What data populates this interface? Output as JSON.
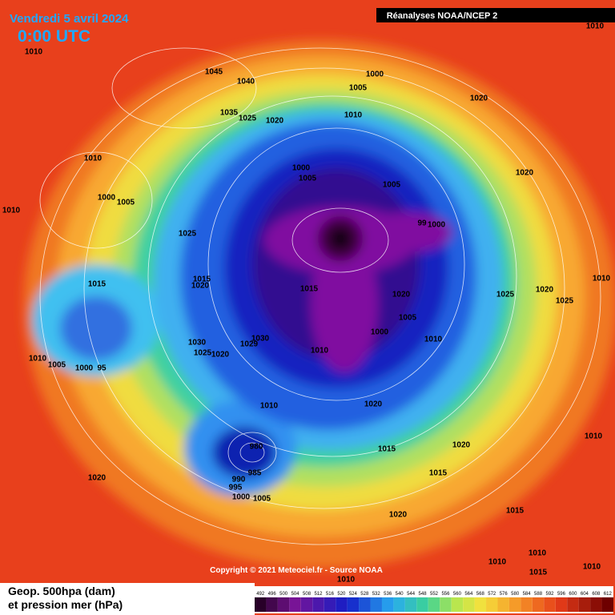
{
  "header": {
    "date": "Vendredi 5 avril 2024",
    "time": "0:00 UTC",
    "source_box": "Réanalyses NOAA/NCEP 2"
  },
  "copyright": "Copyright © 2021 Meteociel.fr - Source NOAA",
  "legend": {
    "title_line1": "Geop. 500hpa (dam)",
    "title_line2": "et pression mer (hPa)",
    "colorbar_labels": [
      492,
      496,
      500,
      504,
      508,
      512,
      516,
      520,
      524,
      528,
      532,
      536,
      540,
      544,
      548,
      552,
      556,
      560,
      564,
      568,
      572,
      576,
      580,
      584,
      588,
      592,
      596,
      600,
      604,
      608,
      612
    ]
  },
  "isobar_labels": [
    "1010",
    "1045",
    "1040",
    "1000",
    "1005",
    "1020",
    "1010",
    "1035",
    "1025",
    "1020",
    "1010",
    "1010",
    "1000",
    "1005",
    "1005",
    "1020",
    "1010",
    "1000",
    "1005",
    "1025",
    "99",
    "1000",
    "1015",
    "1020",
    "1015",
    "1015",
    "1020",
    "1025",
    "1020",
    "1025",
    "1010",
    "1005",
    "1000",
    "1010",
    "1030",
    "1029",
    "1030",
    "1025",
    "1020",
    "1010",
    "1010",
    "1005",
    "1000",
    "95",
    "1010",
    "1020",
    "980",
    "985",
    "990",
    "995",
    "1000",
    "1005",
    "1015",
    "1020",
    "1010",
    "1020",
    "1015",
    "1015",
    "1020",
    "1010",
    "1010",
    "1015",
    "1010",
    "1010"
  ]
}
